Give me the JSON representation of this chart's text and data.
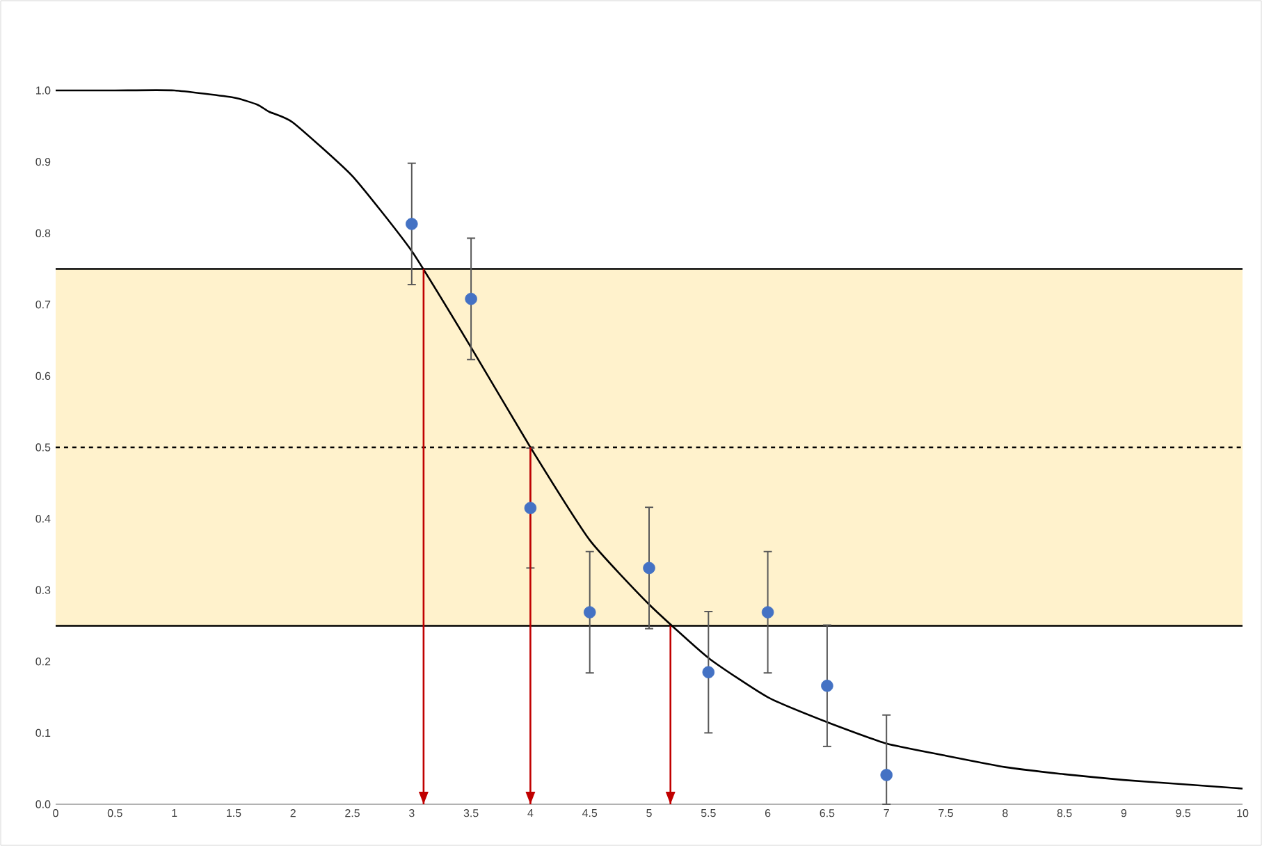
{
  "chart_data": {
    "type": "scatter",
    "xlim": [
      0,
      10
    ],
    "ylim": [
      0,
      1
    ],
    "xticks": [
      0,
      0.5,
      1,
      1.5,
      2,
      2.5,
      3,
      3.5,
      4,
      4.5,
      5,
      5.5,
      6,
      6.5,
      7,
      7.5,
      8,
      8.5,
      9,
      9.5,
      10
    ],
    "yticks": [
      {
        "value": 0,
        "label": "0.0"
      },
      {
        "value": 0.1,
        "label": "0.1"
      },
      {
        "value": 0.2,
        "label": "0.2"
      },
      {
        "value": 0.3,
        "label": "0.3"
      },
      {
        "value": 0.4,
        "label": "0.4"
      },
      {
        "value": 0.5,
        "label": "0.5"
      },
      {
        "value": 0.6,
        "label": "0.6"
      },
      {
        "value": 0.7,
        "label": "0.7"
      },
      {
        "value": 0.8,
        "label": "0.8"
      },
      {
        "value": 0.9,
        "label": "0.9"
      },
      {
        "value": 1,
        "label": "1.0"
      }
    ],
    "grid": false,
    "bands": [
      {
        "axis": "y",
        "from": 0.25,
        "to": 0.75,
        "color": "#fff2cc"
      }
    ],
    "ref_lines": [
      {
        "axis": "y",
        "value": 0.75,
        "color": "#000000",
        "line_style": "solid"
      },
      {
        "axis": "y",
        "value": 0.25,
        "color": "#000000",
        "line_style": "solid"
      },
      {
        "axis": "y",
        "value": 0.5,
        "color": "#000000",
        "line_style": "dashed"
      }
    ],
    "series": [
      {
        "type": "line",
        "marker": "none",
        "color": "#000000",
        "x": [
          0,
          0.5,
          1,
          1.5,
          1.7,
          1.8,
          2,
          2.5,
          3,
          3.5,
          4,
          4.5,
          5,
          5.5,
          6,
          6.5,
          7,
          7.5,
          8,
          8.5,
          9,
          9.5,
          10
        ],
        "values": [
          1.0,
          1.0,
          1.0,
          0.99,
          0.98,
          0.97,
          0.955,
          0.88,
          0.775,
          0.64,
          0.5,
          0.37,
          0.28,
          0.205,
          0.15,
          0.115,
          0.085,
          0.068,
          0.052,
          0.042,
          0.034,
          0.028,
          0.022
        ]
      },
      {
        "marker": "circle",
        "color": "#4472c4",
        "x": [
          3,
          3.5,
          4,
          4.5,
          5,
          5.5,
          6,
          6.5,
          7
        ],
        "values": [
          0.813,
          0.708,
          0.415,
          0.269,
          0.331,
          0.185,
          0.269,
          0.166,
          0.041
        ],
        "errors": [
          0.085,
          0.085,
          0.084,
          0.085,
          0.085,
          0.085,
          0.085,
          0.085,
          [
            0,
            0.125
          ]
        ]
      },
      {
        "type": "line",
        "marker": "none",
        "color": "#c00000",
        "x": [
          3.1,
          3.1
        ],
        "values": [
          0.75,
          0
        ]
      },
      {
        "type": "line",
        "marker": "none",
        "color": "#c00000",
        "x": [
          4,
          4
        ],
        "values": [
          0.5,
          0
        ]
      },
      {
        "type": "line",
        "marker": "none",
        "color": "#c00000",
        "x": [
          5.18,
          5.18
        ],
        "values": [
          0.25,
          0
        ]
      }
    ]
  }
}
